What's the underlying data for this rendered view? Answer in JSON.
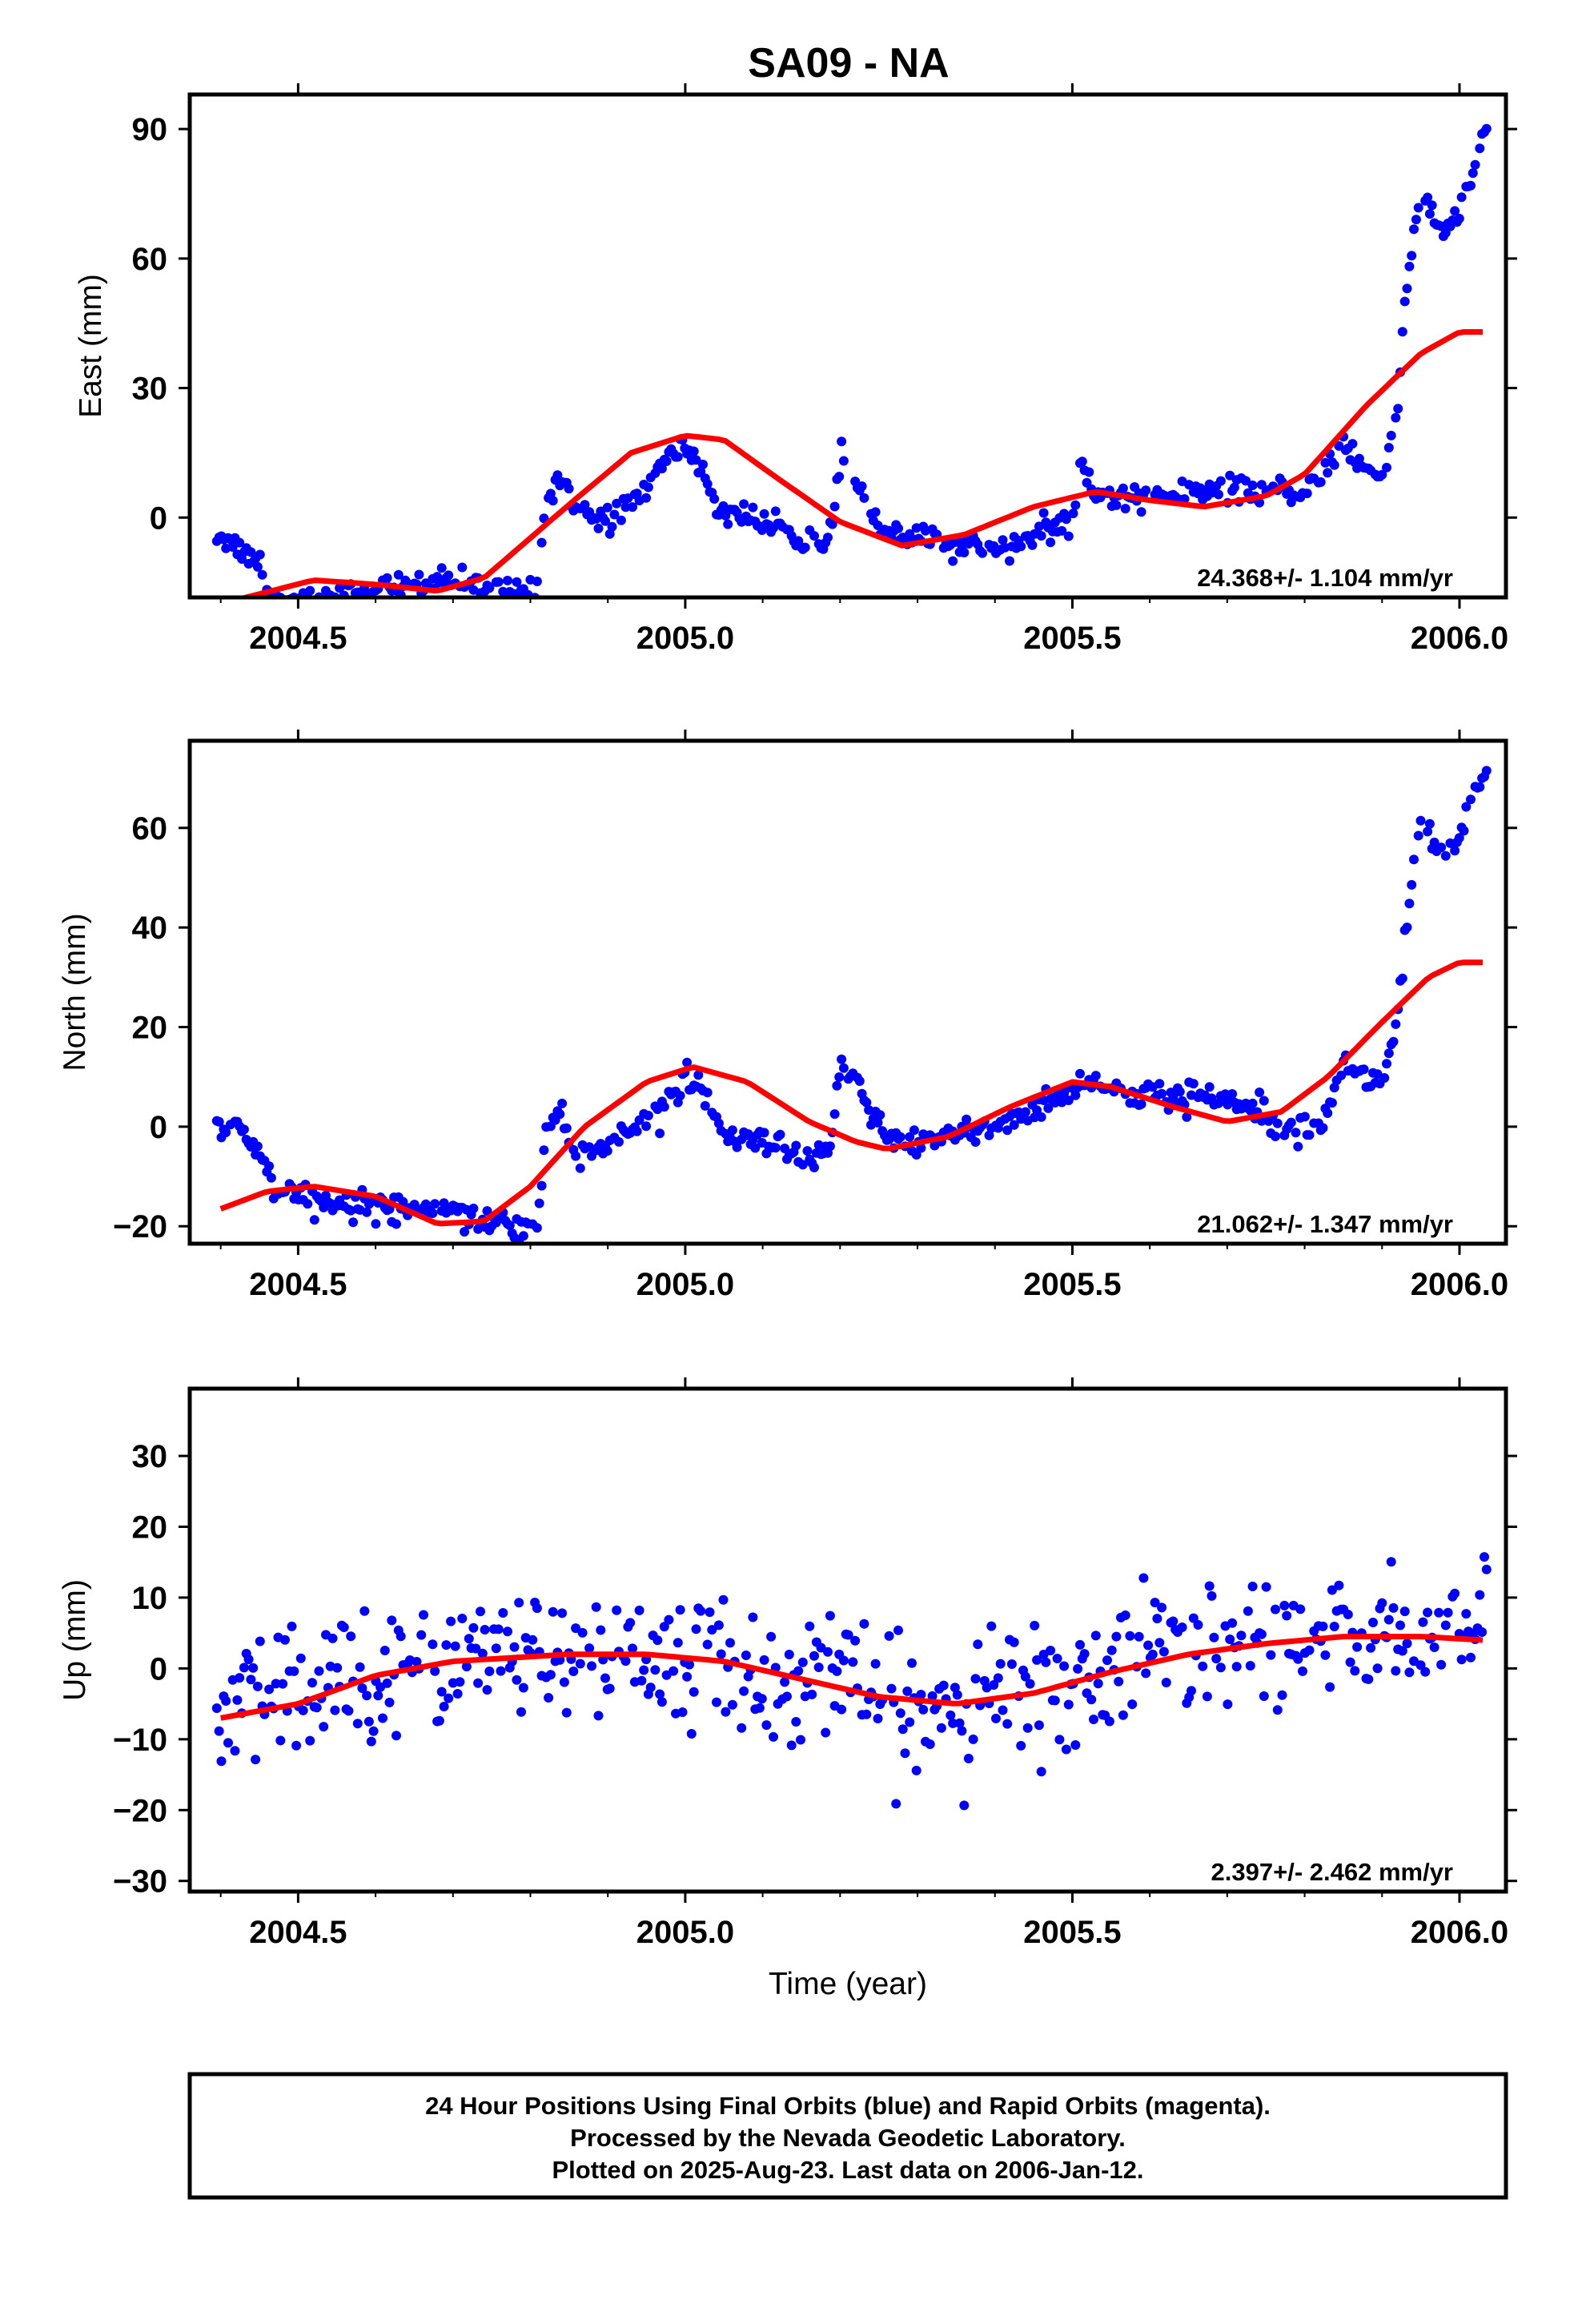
{
  "title": "SA09 - NA",
  "colors": {
    "points": "#0000ff",
    "fit": "#ff0000",
    "frame": "#000000"
  },
  "chart_data": [
    {
      "type": "scatter",
      "component": "east",
      "ylabel": "East (mm)",
      "xlabel": "",
      "xlim": [
        2004.36,
        2006.06
      ],
      "ylim": [
        -18.5,
        98
      ],
      "xticks": [
        "2004.5",
        "2005.0",
        "2005.5",
        "2006.0"
      ],
      "yticks": [
        "0",
        "30",
        "60",
        "90"
      ],
      "rate_text": "24.368+/- 1.104 mm/yr",
      "fit_knots": [
        [
          2004.4,
          -20
        ],
        [
          2004.52,
          -14.5
        ],
        [
          2004.6,
          -15.5
        ],
        [
          2004.68,
          -17
        ],
        [
          2004.74,
          -14
        ],
        [
          2004.85,
          3
        ],
        [
          2004.93,
          15
        ],
        [
          2005.0,
          19
        ],
        [
          2005.05,
          18
        ],
        [
          2005.12,
          9
        ],
        [
          2005.2,
          -1
        ],
        [
          2005.28,
          -6.5
        ],
        [
          2005.36,
          -4
        ],
        [
          2005.45,
          2.5
        ],
        [
          2005.53,
          6
        ],
        [
          2005.6,
          4
        ],
        [
          2005.67,
          2.5
        ],
        [
          2005.75,
          5
        ],
        [
          2005.8,
          10
        ],
        [
          2005.88,
          26
        ],
        [
          2005.95,
          38
        ],
        [
          2006.0,
          43
        ],
        [
          2006.03,
          43
        ]
      ],
      "points_desc": "daily positions",
      "cluster_knots": [
        [
          2004.4,
          -4
        ],
        [
          2004.43,
          -8
        ],
        [
          2004.45,
          -10
        ],
        [
          2004.47,
          -20
        ],
        [
          2004.52,
          -19
        ],
        [
          2004.58,
          -17
        ],
        [
          2004.62,
          -16
        ],
        [
          2004.7,
          -15
        ],
        [
          2004.75,
          -16
        ],
        [
          2004.79,
          -17
        ],
        [
          2004.81,
          -15
        ],
        [
          2004.82,
          5
        ],
        [
          2004.84,
          10
        ],
        [
          2004.86,
          2
        ],
        [
          2004.9,
          -1
        ],
        [
          2004.95,
          7
        ],
        [
          2004.98,
          14
        ],
        [
          2005.0,
          17
        ],
        [
          2005.03,
          8
        ],
        [
          2005.04,
          2
        ],
        [
          2005.07,
          1
        ],
        [
          2005.12,
          -3
        ],
        [
          2005.15,
          -5
        ],
        [
          2005.18,
          -8
        ],
        [
          2005.19,
          -2
        ],
        [
          2005.2,
          15
        ],
        [
          2005.23,
          5
        ],
        [
          2005.25,
          -2
        ],
        [
          2005.28,
          -5
        ],
        [
          2005.32,
          -5
        ],
        [
          2005.35,
          -7
        ],
        [
          2005.42,
          -6
        ],
        [
          2005.47,
          -3
        ],
        [
          2005.5,
          -2
        ],
        [
          2005.51,
          13
        ],
        [
          2005.53,
          5
        ],
        [
          2005.6,
          5
        ],
        [
          2005.66,
          6
        ],
        [
          2005.72,
          6
        ],
        [
          2005.78,
          6
        ],
        [
          2005.82,
          8
        ],
        [
          2005.85,
          18
        ],
        [
          2005.87,
          12
        ],
        [
          2005.9,
          10
        ],
        [
          2005.92,
          25
        ],
        [
          2005.93,
          52
        ],
        [
          2005.95,
          76
        ],
        [
          2005.98,
          65
        ],
        [
          2006.01,
          75
        ],
        [
          2006.03,
          88
        ]
      ]
    },
    {
      "type": "scatter",
      "component": "north",
      "ylabel": "North (mm)",
      "xlabel": "",
      "xlim": [
        2004.36,
        2006.06
      ],
      "ylim": [
        -23.5,
        77.5
      ],
      "xticks": [
        "2004.5",
        "2005.0",
        "2005.5",
        "2006.0"
      ],
      "yticks": [
        "−20",
        "0",
        "20",
        "40",
        "60"
      ],
      "rate_text": "21.062+/- 1.347 mm/yr",
      "fit_knots": [
        [
          2004.4,
          -16.5
        ],
        [
          2004.46,
          -13
        ],
        [
          2004.52,
          -12
        ],
        [
          2004.6,
          -14
        ],
        [
          2004.68,
          -19.5
        ],
        [
          2004.74,
          -19
        ],
        [
          2004.8,
          -12
        ],
        [
          2004.87,
          0
        ],
        [
          2004.95,
          9
        ],
        [
          2005.01,
          12
        ],
        [
          2005.08,
          9
        ],
        [
          2005.16,
          1
        ],
        [
          2005.22,
          -3
        ],
        [
          2005.26,
          -4.5
        ],
        [
          2005.34,
          -2
        ],
        [
          2005.42,
          4
        ],
        [
          2005.5,
          9
        ],
        [
          2005.55,
          8
        ],
        [
          2005.63,
          4
        ],
        [
          2005.7,
          1
        ],
        [
          2005.77,
          3
        ],
        [
          2005.83,
          10
        ],
        [
          2005.9,
          21
        ],
        [
          2005.96,
          30
        ],
        [
          2006.0,
          33
        ],
        [
          2006.03,
          33
        ]
      ],
      "points_desc": "daily positions",
      "cluster_knots": [
        [
          2004.4,
          1
        ],
        [
          2004.42,
          -1
        ],
        [
          2004.45,
          -5
        ],
        [
          2004.47,
          -13
        ],
        [
          2004.52,
          -15
        ],
        [
          2004.58,
          -16
        ],
        [
          2004.65,
          -16
        ],
        [
          2004.7,
          -16
        ],
        [
          2004.74,
          -19
        ],
        [
          2004.79,
          -20
        ],
        [
          2004.81,
          -19
        ],
        [
          2004.82,
          -1
        ],
        [
          2004.84,
          4
        ],
        [
          2004.86,
          -6
        ],
        [
          2004.9,
          -4
        ],
        [
          2004.95,
          2
        ],
        [
          2004.98,
          6
        ],
        [
          2005.0,
          10
        ],
        [
          2005.03,
          4
        ],
        [
          2005.05,
          -2
        ],
        [
          2005.08,
          -3
        ],
        [
          2005.12,
          -4
        ],
        [
          2005.15,
          -8
        ],
        [
          2005.18,
          -6
        ],
        [
          2005.19,
          -2
        ],
        [
          2005.2,
          13
        ],
        [
          2005.23,
          6
        ],
        [
          2005.25,
          0
        ],
        [
          2005.27,
          -4
        ],
        [
          2005.32,
          -2
        ],
        [
          2005.36,
          -1
        ],
        [
          2005.4,
          0
        ],
        [
          2005.45,
          3
        ],
        [
          2005.5,
          8
        ],
        [
          2005.52,
          10
        ],
        [
          2005.55,
          7
        ],
        [
          2005.6,
          6
        ],
        [
          2005.66,
          6
        ],
        [
          2005.72,
          5
        ],
        [
          2005.78,
          1
        ],
        [
          2005.82,
          0
        ],
        [
          2005.85,
          13
        ],
        [
          2005.87,
          10
        ],
        [
          2005.9,
          9
        ],
        [
          2005.92,
          22
        ],
        [
          2005.93,
          40
        ],
        [
          2005.95,
          62
        ],
        [
          2005.98,
          52
        ],
        [
          2006.01,
          62
        ],
        [
          2006.03,
          70
        ]
      ]
    },
    {
      "type": "scatter",
      "component": "up",
      "ylabel": "Up (mm)",
      "xlabel": "Time (year)",
      "xlim": [
        2004.36,
        2006.06
      ],
      "ylim": [
        -31.5,
        39.5
      ],
      "xticks": [
        "2004.5",
        "2005.0",
        "2005.5",
        "2006.0"
      ],
      "yticks": [
        "−30",
        "−20",
        "−10",
        "0",
        "10",
        "20",
        "30"
      ],
      "rate_text": "2.397+/- 2.462 mm/yr",
      "fit_knots": [
        [
          2004.4,
          -7
        ],
        [
          2004.5,
          -5
        ],
        [
          2004.6,
          -1
        ],
        [
          2004.7,
          1
        ],
        [
          2004.85,
          2
        ],
        [
          2004.95,
          2
        ],
        [
          2005.05,
          1
        ],
        [
          2005.15,
          -1.5
        ],
        [
          2005.25,
          -4
        ],
        [
          2005.35,
          -5
        ],
        [
          2005.45,
          -3.5
        ],
        [
          2005.55,
          -0.5
        ],
        [
          2005.65,
          2
        ],
        [
          2005.75,
          3.5
        ],
        [
          2005.85,
          4.5
        ],
        [
          2005.95,
          4.5
        ],
        [
          2006.03,
          4
        ]
      ],
      "points_desc": "daily positions",
      "cluster_knots": [
        [
          2004.4,
          -5
        ],
        [
          2004.5,
          -4
        ],
        [
          2004.6,
          0
        ],
        [
          2004.7,
          2
        ],
        [
          2004.8,
          2
        ],
        [
          2004.9,
          1
        ],
        [
          2005.0,
          1
        ],
        [
          2005.1,
          -1
        ],
        [
          2005.2,
          -2
        ],
        [
          2005.3,
          -7
        ],
        [
          2005.4,
          -4
        ],
        [
          2005.5,
          -2
        ],
        [
          2005.6,
          2
        ],
        [
          2005.7,
          4
        ],
        [
          2005.8,
          4
        ],
        [
          2005.9,
          4
        ],
        [
          2006.0,
          6
        ],
        [
          2006.03,
          8
        ]
      ],
      "scatter_sd": 4.5
    }
  ],
  "footer": {
    "line1": "24 Hour Positions Using Final Orbits (blue) and Rapid Orbits (magenta).",
    "line2": "Processed by the Nevada Geodetic Laboratory.",
    "line3": "Plotted on 2025-Aug-23. Last data on 2006-Jan-12."
  }
}
